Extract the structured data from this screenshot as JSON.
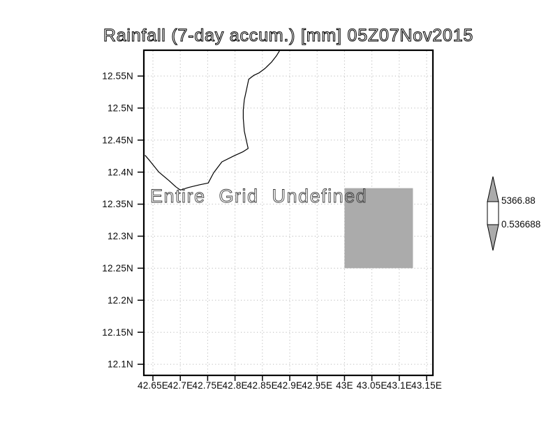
{
  "title": "Rainfall (7-day accum.) [mm] 05Z07Nov2015",
  "annotation": {
    "text": "Entire Grid Undefined"
  },
  "colorbar": {
    "max_label": "5366.88",
    "min_label": "0.536688",
    "arrow_fill": "#ababab",
    "box_fill": "#ffffff"
  },
  "colors": {
    "gridline": "#b9b9b9",
    "frame": "#000000",
    "coastline": "#000000",
    "undefined_shade": "#ababab"
  },
  "chart_data": {
    "type": "heatmap",
    "title": "Rainfall (7-day accum.) [mm] 05Z07Nov2015",
    "values_status": "Entire Grid Undefined",
    "grid": "dotted",
    "legend_position": "right-colorbar",
    "x_axis": {
      "tick_labels": [
        "42.65E",
        "42.7E",
        "42.75E",
        "42.8E",
        "42.85E",
        "42.9E",
        "42.95E",
        "43E",
        "43.05E",
        "43.1E",
        "43.15E"
      ],
      "first_tick_lon": 42.65,
      "tick_step_deg": 0.05
    },
    "y_axis": {
      "tick_labels": [
        "12.55N",
        "12.5N",
        "12.45N",
        "12.4N",
        "12.35N",
        "12.3N",
        "12.25N",
        "12.2N",
        "12.15N",
        "12.1N"
      ],
      "first_tick_lat": 12.55,
      "tick_step_deg": 0.05
    },
    "colorbar": {
      "max": 5366.88,
      "min": 0.536688
    },
    "undefined_region": {
      "lon": [
        43.0,
        43.125
      ],
      "lat": [
        12.25,
        12.375
      ],
      "fill": "#ababab"
    },
    "coastline_lonlat": [
      [
        42.636,
        12.426
      ],
      [
        42.644,
        12.418
      ],
      [
        42.661,
        12.4
      ],
      [
        42.679,
        12.387
      ],
      [
        42.692,
        12.377
      ],
      [
        42.7,
        12.372
      ],
      [
        42.715,
        12.376
      ],
      [
        42.734,
        12.38
      ],
      [
        42.751,
        12.383
      ],
      [
        42.761,
        12.399
      ],
      [
        42.776,
        12.416
      ],
      [
        42.797,
        12.425
      ],
      [
        42.815,
        12.432
      ],
      [
        42.824,
        12.437
      ],
      [
        42.821,
        12.448
      ],
      [
        42.817,
        12.464
      ],
      [
        42.815,
        12.484
      ],
      [
        42.815,
        12.497
      ],
      [
        42.817,
        12.513
      ],
      [
        42.821,
        12.529
      ],
      [
        42.825,
        12.545
      ],
      [
        42.834,
        12.551
      ],
      [
        42.844,
        12.555
      ],
      [
        42.855,
        12.562
      ],
      [
        42.867,
        12.572
      ],
      [
        42.876,
        12.582
      ],
      [
        42.881,
        12.589
      ]
    ]
  }
}
